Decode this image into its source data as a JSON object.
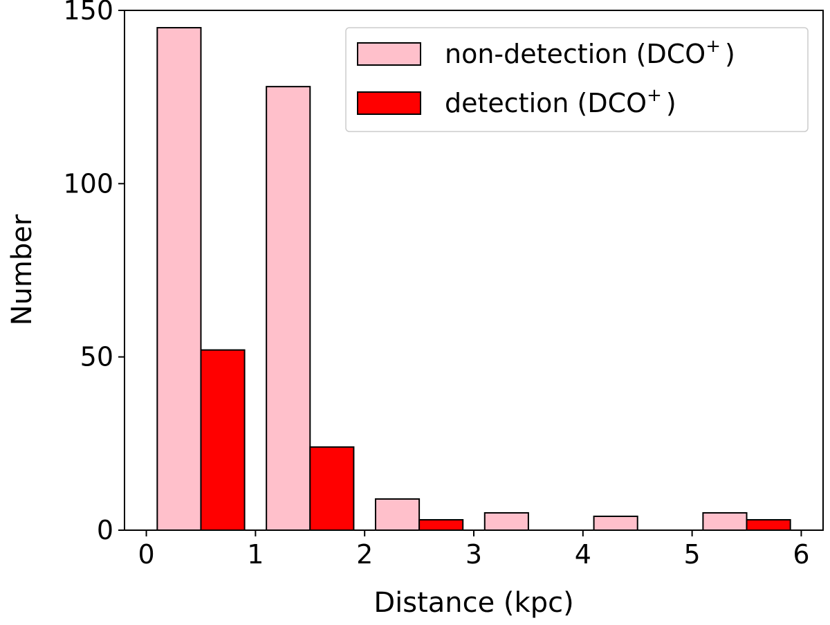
{
  "chart_data": {
    "type": "bar",
    "xlabel": "Distance (kpc)",
    "ylabel": "Number",
    "xlim": [
      -0.2,
      6.2
    ],
    "ylim": [
      0,
      150
    ],
    "xticks": [
      0,
      1,
      2,
      3,
      4,
      5,
      6
    ],
    "yticks": [
      0,
      50,
      100,
      150
    ],
    "bin_edges": [
      0,
      1,
      2,
      3,
      4,
      5,
      6
    ],
    "legend": {
      "placement": "top-right"
    },
    "grid": false,
    "series": [
      {
        "name_base": "non-detection (DCO",
        "name_sup": "+",
        "name_tail": ")",
        "color": "#FFC0CB",
        "values": [
          145,
          128,
          9,
          5,
          4,
          5
        ]
      },
      {
        "name_base": "detection (DCO",
        "name_sup": "+",
        "name_tail": ")",
        "color": "#FF0000",
        "values": [
          52,
          24,
          3,
          0,
          0,
          3
        ]
      }
    ]
  }
}
